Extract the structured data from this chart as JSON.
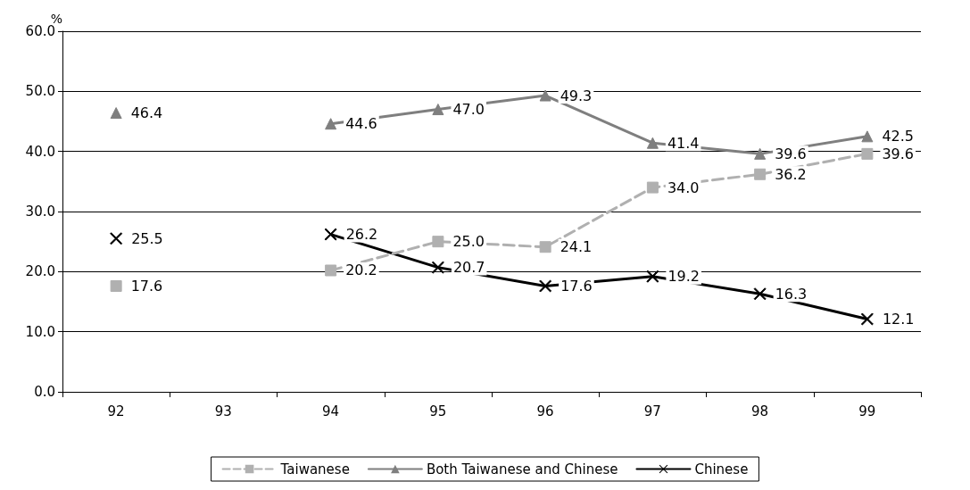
{
  "chart_data": {
    "type": "line",
    "ylabel": "%",
    "categories": [
      "92",
      "93",
      "94",
      "95",
      "96",
      "97",
      "98",
      "99"
    ],
    "series": [
      {
        "name": "Taiwanese",
        "color": "#b0b0b0",
        "marker": "square",
        "line_style": "dashed",
        "values": [
          17.6,
          null,
          20.2,
          25.0,
          24.1,
          34.0,
          36.2,
          39.6
        ],
        "value_labels": [
          "17.6",
          null,
          "20.2",
          "25.0",
          "24.1",
          "34.0",
          "36.2",
          "39.6"
        ]
      },
      {
        "name": "Both Taiwanese and Chinese",
        "color": "#7f7f7f",
        "marker": "triangle",
        "line_style": "solid",
        "values": [
          46.4,
          null,
          44.6,
          47.0,
          49.3,
          41.4,
          39.6,
          42.5
        ],
        "value_labels": [
          "46.4",
          null,
          "44.6",
          "47.0",
          "49.3",
          "41.4",
          "39.6",
          "42.5"
        ]
      },
      {
        "name": "Chinese",
        "color": "#000000",
        "marker": "cross",
        "line_style": "solid",
        "values": [
          25.5,
          null,
          26.2,
          20.7,
          17.6,
          19.2,
          16.3,
          12.1
        ],
        "value_labels": [
          "25.5",
          null,
          "26.2",
          "20.7",
          "17.6",
          "19.2",
          "16.3",
          "12.1"
        ]
      }
    ],
    "ylim": [
      0,
      60
    ],
    "yticks": [
      {
        "value": 0,
        "label": "0.0"
      },
      {
        "value": 10,
        "label": "10.0"
      },
      {
        "value": 20,
        "label": "20.0"
      },
      {
        "value": 30,
        "label": "30.0"
      },
      {
        "value": 40,
        "label": "40.0"
      },
      {
        "value": 50,
        "label": "50.0"
      },
      {
        "value": 60,
        "label": "60.0"
      }
    ],
    "grid": "y",
    "legend": "bottom"
  }
}
